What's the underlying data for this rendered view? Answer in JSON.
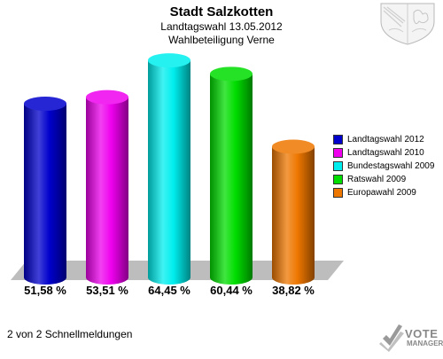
{
  "chart_data": {
    "type": "bar",
    "title": "Stadt Salzkotten",
    "subtitle_1": "Landtagswahl 13.05.2012",
    "subtitle_2": "Wahlbeteiligung Verne",
    "categories": [
      "Landtagswahl 2012",
      "Landtagswahl 2010",
      "Bundestagswahl 2009",
      "Ratswahl 2009",
      "Europawahl 2009"
    ],
    "values": [
      51.58,
      53.51,
      64.45,
      60.44,
      38.82
    ],
    "value_labels": [
      "51,58 %",
      "53,51 %",
      "64,45 %",
      "60,44 %",
      "38,82 %"
    ],
    "colors": [
      "#0000cc",
      "#ee00ee",
      "#00eeee",
      "#00dd00",
      "#ee7700"
    ],
    "ylim": [
      0,
      100
    ],
    "legend": "right",
    "grid": false
  },
  "footer": "2 von 2 Schnellmeldungen",
  "branding": {
    "vote": "VOTE",
    "manager": "MANAGER",
    "icon": "vote-manager-logo-icon",
    "crest": "coat-of-arms-icon"
  }
}
